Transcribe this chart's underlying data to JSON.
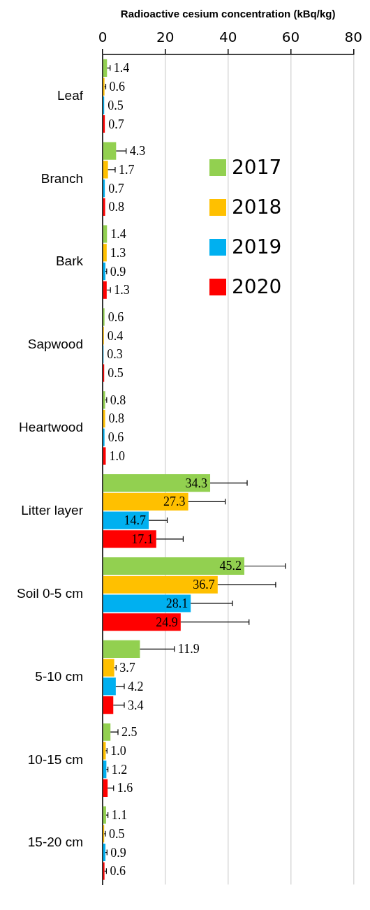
{
  "chart_data": {
    "type": "bar",
    "orientation": "horizontal",
    "title": "Radioactive cesium concentration (kBq/kg)",
    "categories": [
      "Leaf",
      "Branch",
      "Bark",
      "Sapwood",
      "Heartwood",
      "Litter layer",
      "Soil 0-5 cm",
      "5-10 cm",
      "10-15 cm",
      "15-20 cm"
    ],
    "series": [
      {
        "name": "2017",
        "color": "#92d050",
        "values": [
          1.4,
          4.3,
          1.4,
          0.6,
          0.8,
          34.3,
          45.2,
          11.9,
          2.5,
          1.1
        ],
        "value_labels": [
          "1.4",
          "4.3",
          "1.4",
          "0.6",
          "0.8",
          "34.3",
          "45.2",
          "11.9",
          "2.5",
          "1.1"
        ],
        "errors": [
          [
            1.4,
            2.4
          ],
          [
            4.3,
            7.5
          ],
          null,
          null,
          [
            0.8,
            1.3
          ],
          [
            34.3,
            46.1
          ],
          [
            45.2,
            58.3
          ],
          [
            11.9,
            22.9
          ],
          [
            2.5,
            4.9
          ],
          [
            1.1,
            1.7
          ]
        ]
      },
      {
        "name": "2018",
        "color": "#ffc000",
        "values": [
          0.6,
          1.7,
          1.3,
          0.4,
          0.8,
          27.3,
          36.7,
          3.7,
          1.0,
          0.5
        ],
        "value_labels": [
          "0.6",
          "1.7",
          "1.3",
          "0.4",
          "0.8",
          "27.3",
          "36.7",
          "3.7",
          "1.0",
          "0.5"
        ],
        "errors": [
          [
            0.6,
            1.0
          ],
          [
            1.7,
            4.0
          ],
          null,
          null,
          null,
          [
            27.3,
            39.1
          ],
          [
            36.7,
            55.2
          ],
          [
            3.7,
            4.3
          ],
          [
            1.0,
            1.4
          ],
          [
            0.5,
            0.9
          ]
        ]
      },
      {
        "name": "2019",
        "color": "#00b0f0",
        "values": [
          0.5,
          0.7,
          0.9,
          0.3,
          0.6,
          14.7,
          28.1,
          4.2,
          1.2,
          0.9
        ],
        "value_labels": [
          "0.5",
          "0.7",
          "0.9",
          "0.3",
          "0.6",
          "14.7",
          "28.1",
          "4.2",
          "1.2",
          "0.9"
        ],
        "errors": [
          null,
          null,
          [
            0.9,
            1.3
          ],
          null,
          null,
          [
            14.7,
            20.6
          ],
          [
            28.1,
            41.4
          ],
          [
            4.2,
            6.9
          ],
          [
            1.2,
            1.7
          ],
          [
            0.9,
            1.4
          ]
        ]
      },
      {
        "name": "2020",
        "color": "#ff0000",
        "values": [
          0.7,
          0.8,
          1.3,
          0.5,
          1.0,
          17.1,
          24.9,
          3.4,
          1.6,
          0.6
        ],
        "value_labels": [
          "0.7",
          "0.8",
          "1.3",
          "0.5",
          "1.0",
          "17.1",
          "24.9",
          "3.4",
          "1.6",
          "0.6"
        ],
        "errors": [
          null,
          null,
          [
            1.3,
            2.5
          ],
          null,
          null,
          [
            17.1,
            25.7
          ],
          [
            24.9,
            46.7
          ],
          [
            3.4,
            6.9
          ],
          [
            1.6,
            3.5
          ],
          [
            0.6,
            1.2
          ]
        ]
      }
    ],
    "xlim": [
      0,
      80
    ],
    "xticks": [
      0,
      20,
      40,
      60,
      80
    ],
    "grid": "x",
    "legend": "top right"
  }
}
